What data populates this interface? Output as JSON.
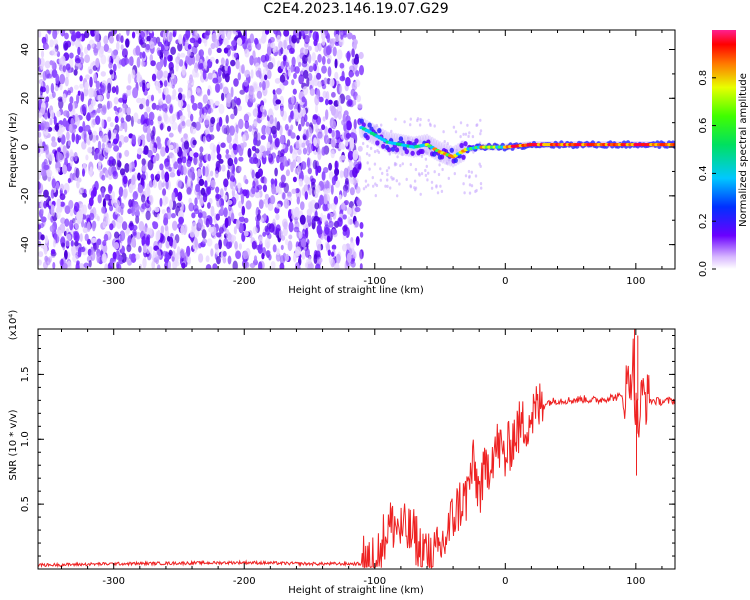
{
  "title": "C2E4.2023.146.19.07.G29",
  "chart_data": [
    {
      "type": "heatmap",
      "xlabel": "Height of straight line (km)",
      "ylabel": "Frequency (Hz)",
      "xlim": [
        -358,
        130
      ],
      "ylim": [
        -50,
        48
      ],
      "xticks": [
        -300,
        -200,
        -100,
        0,
        100
      ],
      "xtick_labels": [
        "-300",
        "-200",
        "-100",
        "0",
        "100"
      ],
      "yticks": [
        -40,
        -20,
        0,
        20,
        40
      ],
      "ytick_labels": [
        "-40",
        "-20",
        "0",
        "20",
        "40"
      ],
      "noise_region_x": [
        -358,
        -110
      ],
      "signal_track": {
        "x": [
          -110,
          -100,
          -90,
          -80,
          -70,
          -60,
          -50,
          -40,
          -30,
          -20,
          -10,
          0,
          20,
          40,
          60,
          80,
          100,
          130
        ],
        "freq": [
          8,
          5,
          2,
          1,
          0,
          1,
          -2,
          -4,
          -1,
          0,
          0,
          0,
          1,
          1,
          1,
          1,
          1,
          1
        ]
      },
      "colorbar": {
        "label": "Normalized spectral amplitude",
        "range": [
          0.0,
          1.0
        ],
        "ticks": [
          0.0,
          0.2,
          0.4,
          0.6,
          0.8
        ],
        "tick_labels": [
          "0.0",
          "0.2",
          "0.4",
          "0.6",
          "0.8"
        ]
      }
    },
    {
      "type": "line",
      "xlabel": "Height of straight line (km)",
      "ylabel": "SNR (10 * v/v)",
      "multiplier_label": "(x10⁴)",
      "xlim": [
        -358,
        130
      ],
      "ylim": [
        0,
        1.85
      ],
      "xticks": [
        -300,
        -200,
        -100,
        0,
        100
      ],
      "xtick_labels": [
        "-300",
        "-200",
        "-100",
        "0",
        "100"
      ],
      "yticks": [
        0.5,
        1.0,
        1.5
      ],
      "ytick_labels": [
        "0.5",
        "1.0",
        "1.5"
      ],
      "series": [
        {
          "color": "#ee2222",
          "x": [
            -358,
            -300,
            -200,
            -150,
            -110,
            -100,
            -95,
            -90,
            -85,
            -80,
            -75,
            -70,
            -60,
            -55,
            -50,
            -45,
            -40,
            -35,
            -30,
            -25,
            -20,
            -15,
            -10,
            -5,
            0,
            5,
            10,
            15,
            20,
            25,
            30,
            40,
            50,
            60,
            70,
            80,
            90,
            95,
            98,
            100,
            102,
            105,
            110,
            120,
            130
          ],
          "y": [
            0.03,
            0.04,
            0.05,
            0.04,
            0.04,
            0.08,
            0.18,
            0.32,
            0.35,
            0.3,
            0.28,
            0.25,
            0.12,
            0.08,
            0.15,
            0.25,
            0.4,
            0.5,
            0.55,
            0.8,
            0.6,
            0.75,
            0.9,
            0.95,
            0.85,
            1.0,
            1.08,
            1.12,
            1.18,
            1.24,
            1.28,
            1.3,
            1.3,
            1.31,
            1.3,
            1.32,
            1.33,
            1.45,
            1.6,
            1.2,
            1.1,
            1.35,
            1.3,
            1.29,
            1.3
          ]
        }
      ]
    }
  ]
}
